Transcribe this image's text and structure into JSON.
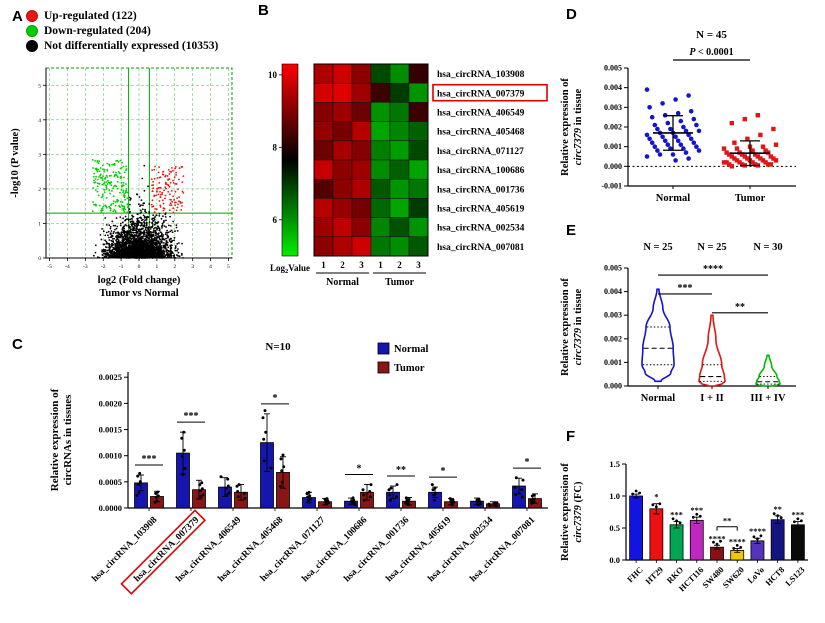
{
  "figure": {
    "panel_labels": {
      "A": "A",
      "B": "B",
      "C": "C",
      "D": "D",
      "E": "E",
      "F": "F"
    }
  },
  "chart_data": [
    {
      "id": "volcano",
      "panel": "A",
      "type": "scatter",
      "xlabel": "log2 (Fold change)",
      "xlabel2": "Tumor vs Normal",
      "ylabel": "-log10 (P value)",
      "xlim": [
        -5.2,
        5.2
      ],
      "ylim": [
        0,
        5.5
      ],
      "xticks": [
        -5,
        -4,
        -3,
        -2,
        -1,
        0,
        1,
        2,
        3,
        4,
        5
      ],
      "yticks": [
        0,
        1,
        2,
        3,
        4,
        5
      ],
      "grid_color": "#00a000",
      "thresholds": {
        "fold_change": 0.58,
        "p": 1.3
      },
      "legend": [
        {
          "label": "Up-regulated (122)",
          "color": "#ee1111",
          "count": 122
        },
        {
          "label": "Down-regulated (204)",
          "color": "#00cc00",
          "count": 204
        },
        {
          "label": "Not differentially expressed (10353)",
          "color": "#000000",
          "count": 10353
        }
      ]
    },
    {
      "id": "heatmap",
      "panel": "B",
      "type": "heatmap",
      "rows": [
        "hsa_circRNA_103908",
        "hsa_circRNA_007379",
        "hsa_circRNA_406549",
        "hsa_circRNA_405468",
        "hsa_circRNA_071127",
        "hsa_circRNA_100686",
        "hsa_circRNA_001736",
        "hsa_circRNA_405619",
        "hsa_circRNA_002534",
        "hsa_circRNA_007081"
      ],
      "highlight_row": "hsa_circRNA_007379",
      "columns": [
        "1",
        "2",
        "3",
        "1",
        "2",
        "3"
      ],
      "group_labels": [
        "Normal",
        "Tumor"
      ],
      "scale": {
        "label": "Log2Value",
        "ticks": [
          10,
          8,
          6
        ],
        "range": [
          5,
          10.3
        ],
        "colors": {
          "high": "#ff0000",
          "mid": "#000000",
          "low": "#00ee00"
        }
      },
      "values": [
        [
          9.3,
          9.7,
          8.9,
          7.2,
          6.3,
          7.8
        ],
        [
          9.8,
          9.9,
          9.1,
          7.9,
          7.4,
          6.2
        ],
        [
          8.8,
          9.1,
          8.5,
          6.2,
          6.6,
          7.9
        ],
        [
          9.0,
          8.6,
          9.4,
          6.0,
          6.4,
          6.9
        ],
        [
          8.5,
          9.2,
          8.8,
          6.5,
          6.1,
          7.2
        ],
        [
          9.6,
          8.9,
          9.1,
          6.3,
          6.9,
          6.0
        ],
        [
          8.2,
          8.9,
          9.3,
          7.0,
          6.2,
          6.6
        ],
        [
          9.4,
          9.0,
          8.6,
          6.8,
          6.0,
          7.4
        ],
        [
          9.1,
          9.5,
          8.9,
          6.4,
          7.1,
          6.2
        ],
        [
          8.9,
          9.3,
          9.7,
          6.6,
          6.3,
          7.0
        ]
      ]
    },
    {
      "id": "tissue_bars",
      "panel": "C",
      "type": "bar",
      "n_label": "N=10",
      "ylabel_lines": [
        "Relative expression of",
        "circRNAs in tissues"
      ],
      "categories": [
        "hsa_circRNA_103908",
        "hsa_circRNA_007379",
        "hsa_circRNA_406549",
        "hsa_circRNA_405468",
        "hsa_circRNA_071127",
        "hsa_circRNA_100686",
        "hsa_circRNA_001736",
        "hsa_circRNA_405619",
        "hsa_circRNA_002534",
        "hsa_circRNA_007081"
      ],
      "highlight_category": "hsa_circRNA_007379",
      "yticks": [
        0,
        0.0005,
        0.001,
        0.0015,
        0.002,
        0.0025
      ],
      "ylim": [
        0,
        0.0026
      ],
      "series": [
        {
          "name": "Normal",
          "color": "#1515b0",
          "values": [
            0.00048,
            0.00105,
            0.0004,
            0.00125,
            0.0002,
            0.00013,
            0.0003,
            0.0003,
            0.00013,
            0.00042
          ],
          "errors": [
            0.00015,
            0.0004,
            0.00018,
            0.00055,
            0.0001,
            6e-05,
            0.00012,
            0.0001,
            6e-05,
            0.00015
          ]
        },
        {
          "name": "Tumor",
          "color": "#8b1515",
          "values": [
            0.00022,
            0.00035,
            0.0003,
            0.00068,
            0.00012,
            0.0003,
            0.00013,
            0.00012,
            8e-05,
            0.00018
          ],
          "errors": [
            0.0001,
            0.00018,
            0.00015,
            0.0003,
            6e-05,
            0.00015,
            7e-05,
            6e-05,
            4e-05,
            9e-05
          ]
        }
      ],
      "significance": [
        {
          "index": 0,
          "stars": "***"
        },
        {
          "index": 1,
          "stars": "***"
        },
        {
          "index": 3,
          "stars": "*"
        },
        {
          "index": 5,
          "stars": "*"
        },
        {
          "index": 6,
          "stars": "**"
        },
        {
          "index": 7,
          "stars": "*"
        },
        {
          "index": 9,
          "stars": "*"
        }
      ]
    },
    {
      "id": "tissue_scatter",
      "panel": "D",
      "type": "scatter",
      "n_label": "N = 45",
      "p_label": "P < 0.0001",
      "ylabel_line1": "Relative expression of",
      "ylabel_italic": "circ7379",
      "ylabel_rest": " in tissue",
      "yticks": [
        -0.001,
        0,
        0.001,
        0.002,
        0.003,
        0.004,
        0.005
      ],
      "ylim": [
        -0.001,
        0.005
      ],
      "groups": [
        {
          "name": "Normal",
          "color": "#1414cc",
          "marker": "circle",
          "values": [
            0.0039,
            0.0036,
            0.0034,
            0.0032,
            0.003,
            0.0028,
            0.0027,
            0.0026,
            0.0025,
            0.0024,
            0.0023,
            0.0022,
            0.0021,
            0.0021,
            0.002,
            0.0019,
            0.0019,
            0.0018,
            0.0018,
            0.0017,
            0.0017,
            0.0016,
            0.0016,
            0.0015,
            0.0015,
            0.0014,
            0.0014,
            0.0013,
            0.0013,
            0.0012,
            0.0012,
            0.0011,
            0.0011,
            0.001,
            0.001,
            0.0009,
            0.0009,
            0.0008,
            0.0008,
            0.0007,
            0.0006,
            0.0006,
            0.0005,
            0.0004,
            0.0003
          ]
        },
        {
          "name": "Tumor",
          "color": "#e01616",
          "marker": "square",
          "values": [
            0.0026,
            0.0024,
            0.0022,
            0.0019,
            0.0016,
            0.0014,
            0.0012,
            0.0011,
            0.001,
            0.001,
            0.0009,
            0.0009,
            0.0008,
            0.0008,
            0.0007,
            0.0007,
            0.0007,
            0.0006,
            0.0006,
            0.0006,
            0.0005,
            0.0005,
            0.0005,
            0.0005,
            0.0004,
            0.0004,
            0.0004,
            0.0004,
            0.0003,
            0.0003,
            0.0003,
            0.0003,
            0.0002,
            0.0002,
            0.0002,
            0.0002,
            0.0002,
            0.0001,
            0.0001,
            0.0001,
            0.0001,
            0.0001,
            5e-05,
            5e-05,
            0.0
          ]
        }
      ]
    },
    {
      "id": "stage_violin",
      "panel": "E",
      "type": "violin",
      "n_labels": [
        "N = 25",
        "N = 25",
        "N = 30"
      ],
      "ylabel_line1": "Relative expression of",
      "ylabel_italic": "circ7379",
      "ylabel_rest": " in tissue",
      "yticks": [
        0,
        0.001,
        0.002,
        0.003,
        0.004,
        0.005
      ],
      "ylim": [
        0,
        0.005
      ],
      "groups": [
        {
          "name": "Normal",
          "color": "#1414cc",
          "n": 25,
          "median": 0.0016,
          "q1": 0.0009,
          "q3": 0.0025,
          "min": 0.0002,
          "max": 0.0041
        },
        {
          "name": "I + II",
          "color": "#e01616",
          "n": 25,
          "median": 0.0004,
          "q1": 0.0002,
          "q3": 0.0009,
          "min": 0.0,
          "max": 0.003
        },
        {
          "name": "III + IV",
          "color": "#00bb00",
          "n": 30,
          "median": 0.00018,
          "q1": 8e-05,
          "q3": 0.0004,
          "min": 0.0,
          "max": 0.0013
        }
      ],
      "comparisons": [
        {
          "a": 0,
          "b": 1,
          "stars": "***",
          "y": 0.0039
        },
        {
          "a": 1,
          "b": 2,
          "stars": "**",
          "y": 0.0031
        },
        {
          "a": 0,
          "b": 2,
          "stars": "****",
          "y": 0.0047
        }
      ]
    },
    {
      "id": "cellline_bars",
      "panel": "F",
      "type": "bar",
      "ylabel_line1": "Relative expression of",
      "ylabel_italic": "circ7379",
      "ylabel_rest": " (FC)",
      "categories": [
        "FHC",
        "HT29",
        "RKO",
        "HCT116",
        "SW480",
        "SW620",
        "LoVo",
        "HCT8",
        "LS123"
      ],
      "values": [
        1.0,
        0.8,
        0.55,
        0.62,
        0.2,
        0.15,
        0.3,
        0.63,
        0.55
      ],
      "errors": [
        0.03,
        0.08,
        0.05,
        0.05,
        0.03,
        0.03,
        0.04,
        0.06,
        0.05
      ],
      "colors": [
        "#1414e0",
        "#ee1111",
        "#00a651",
        "#c026c0",
        "#8b1010",
        "#efc800",
        "#5533bb",
        "#151580",
        "#0a0a0a"
      ],
      "stars": [
        "",
        "*",
        "***",
        "***",
        "****",
        "****",
        "****",
        "**",
        "***"
      ],
      "bracket": {
        "a": 4,
        "b": 5,
        "stars": "**",
        "y": 0.52
      },
      "yticks": [
        0,
        0.5,
        1.0,
        1.5
      ],
      "ylim": [
        0,
        1.5
      ]
    }
  ]
}
